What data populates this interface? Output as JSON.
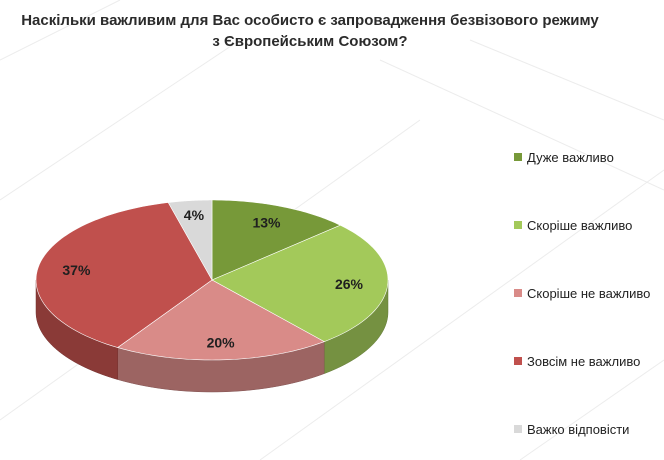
{
  "chart_data": {
    "type": "pie",
    "title_lines": [
      "Наскільки важливим для Вас особисто є запровадження безвізового режиму",
      "з Європейським Союзом?"
    ],
    "slices": [
      {
        "label": "Дуже важливо",
        "value": 13,
        "value_label": "13%",
        "color": "#779939"
      },
      {
        "label": "Скоріше важливо",
        "value": 26,
        "value_label": "26%",
        "color": "#a3c95a"
      },
      {
        "label": "Скоріше не важливо",
        "value": 20,
        "value_label": "20%",
        "color": "#d98b88"
      },
      {
        "label": "Зовсім не важливо",
        "value": 37,
        "value_label": "37%",
        "color": "#c0504d"
      },
      {
        "label": "Важко відповісти",
        "value": 4,
        "value_label": "4%",
        "color": "#d9d9d9"
      }
    ],
    "style": "3d",
    "legend_position": "right"
  }
}
